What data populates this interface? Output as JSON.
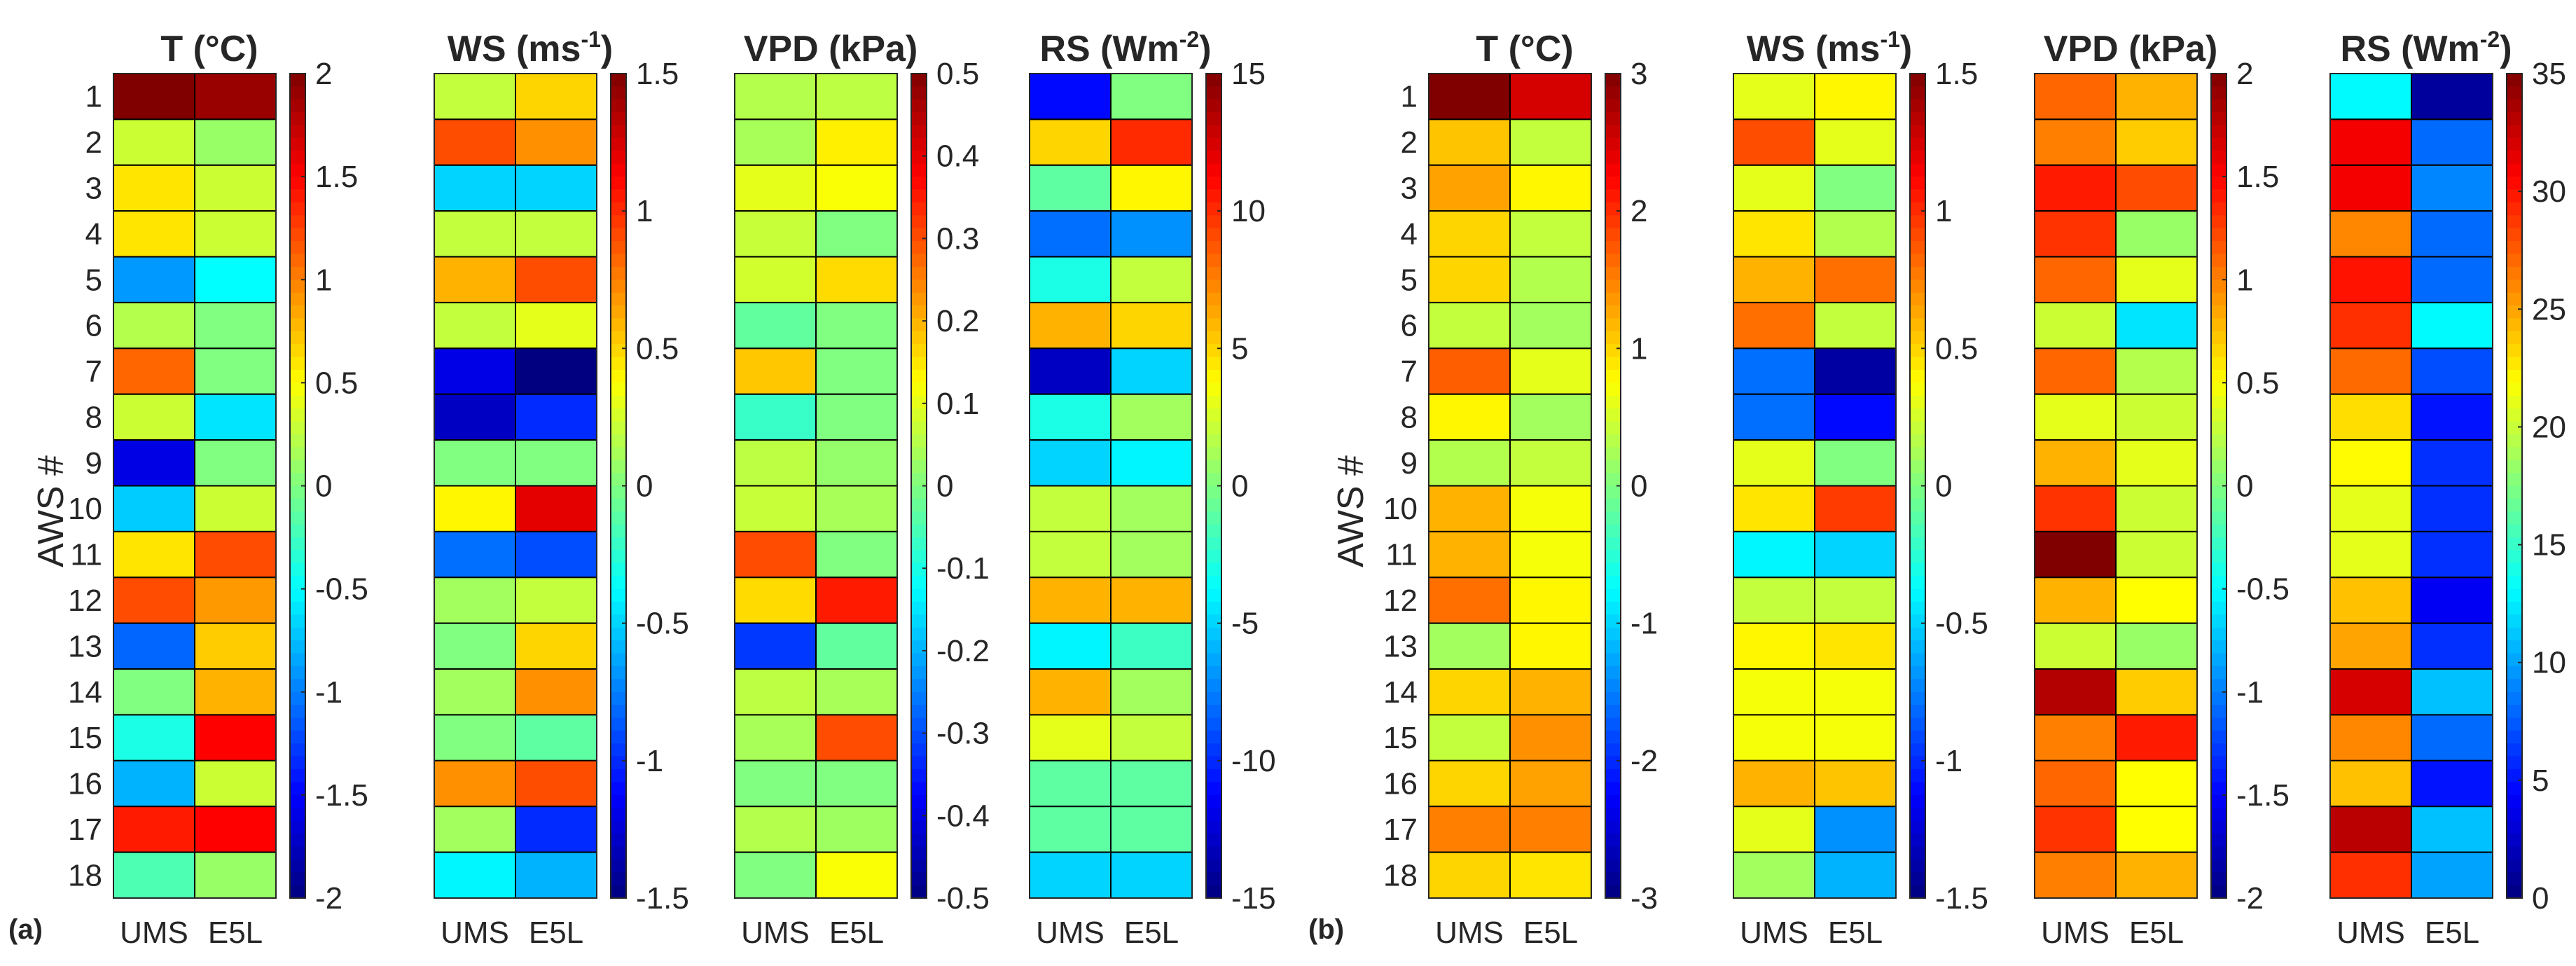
{
  "chart_data": {
    "type": "heatmap",
    "colormap": "jet",
    "ylabel": "AWS #",
    "rows": [
      "1",
      "2",
      "3",
      "4",
      "5",
      "6",
      "7",
      "8",
      "9",
      "10",
      "11",
      "12",
      "13",
      "14",
      "15",
      "16",
      "17",
      "18"
    ],
    "columns": [
      "UMS",
      "E5L"
    ],
    "panels": [
      {
        "label": "(a)",
        "subplots": [
          {
            "title": "T (°C)",
            "title_main": "T (°C)",
            "title_sup": "",
            "clim": [
              -2,
              2
            ],
            "colorbar_ticks": [
              -2,
              -1.5,
              -1,
              -0.5,
              0,
              0.5,
              1,
              1.5,
              2
            ],
            "colorbar_tick_labels": [
              "-2",
              "-1.5",
              "-1",
              "-0.5",
              "0",
              "0.5",
              "1",
              "1.5",
              "2"
            ],
            "values": [
              [
                2.0,
                1.9
              ],
              [
                0.3,
                0.1
              ],
              [
                0.6,
                0.3
              ],
              [
                0.6,
                0.3
              ],
              [
                -0.9,
                -0.5
              ],
              [
                0.2,
                0.0
              ],
              [
                1.1,
                0.0
              ],
              [
                0.3,
                -0.6
              ],
              [
                -1.6,
                0.0
              ],
              [
                -0.7,
                0.3
              ],
              [
                0.6,
                1.2
              ],
              [
                1.2,
                0.9
              ],
              [
                -1.1,
                0.7
              ],
              [
                0.0,
                0.8
              ],
              [
                -0.4,
                1.5
              ],
              [
                -0.8,
                0.3
              ],
              [
                1.4,
                1.5
              ],
              [
                -0.2,
                0.1
              ]
            ]
          },
          {
            "title": "WS (ms-1)",
            "title_main": "WS (ms",
            "title_sup": "-1",
            "title_close": ")",
            "clim": [
              -1.5,
              1.5
            ],
            "colorbar_ticks": [
              -1.5,
              -1,
              -0.5,
              0,
              0.5,
              1,
              1.5
            ],
            "colorbar_tick_labels": [
              "-1.5",
              "-1",
              "-0.5",
              "0",
              "0.5",
              "1",
              "1.5"
            ],
            "values": [
              [
                0.2,
                0.5
              ],
              [
                0.9,
                0.7
              ],
              [
                -0.5,
                -0.5
              ],
              [
                0.2,
                0.2
              ],
              [
                0.6,
                0.9
              ],
              [
                0.2,
                0.3
              ],
              [
                -1.2,
                -1.5
              ],
              [
                -1.3,
                -1.0
              ],
              [
                0.0,
                0.0
              ],
              [
                0.4,
                1.2
              ],
              [
                -0.8,
                -0.9
              ],
              [
                0.1,
                0.2
              ],
              [
                0.0,
                0.5
              ],
              [
                0.1,
                0.7
              ],
              [
                0.0,
                -0.1
              ],
              [
                0.7,
                0.9
              ],
              [
                0.1,
                -1.0
              ],
              [
                -0.4,
                -0.6
              ]
            ]
          },
          {
            "title": "VPD (kPa)",
            "title_main": "VPD (kPa)",
            "title_sup": "",
            "clim": [
              -0.5,
              0.5
            ],
            "colorbar_ticks": [
              -0.5,
              -0.4,
              -0.3,
              -0.2,
              -0.1,
              0,
              0.1,
              0.2,
              0.3,
              0.4,
              0.5
            ],
            "colorbar_tick_labels": [
              "-0.5",
              "-0.4",
              "-0.3",
              "-0.2",
              "-0.1",
              "0",
              "0.1",
              "0.2",
              "0.3",
              "0.4",
              "0.5"
            ],
            "values": [
              [
                0.05,
                0.06
              ],
              [
                0.04,
                0.14
              ],
              [
                0.1,
                0.12
              ],
              [
                0.07,
                0.0
              ],
              [
                0.08,
                0.16
              ],
              [
                -0.03,
                0.0
              ],
              [
                0.18,
                0.0
              ],
              [
                -0.07,
                0.0
              ],
              [
                0.06,
                0.02
              ],
              [
                0.07,
                0.04
              ],
              [
                0.3,
                0.0
              ],
              [
                0.16,
                0.35
              ],
              [
                -0.32,
                -0.03
              ],
              [
                0.06,
                0.04
              ],
              [
                0.04,
                0.3
              ],
              [
                0.0,
                0.0
              ],
              [
                0.05,
                0.03
              ],
              [
                0.0,
                0.12
              ]
            ]
          },
          {
            "title": "RS (Wm-2)",
            "title_main": "RS (Wm",
            "title_sup": "-2",
            "title_close": ")",
            "clim": [
              -15,
              15
            ],
            "colorbar_ticks": [
              -15,
              -10,
              -5,
              0,
              5,
              10,
              15
            ],
            "colorbar_tick_labels": [
              "-15",
              "-10",
              "-5",
              "0",
              "5",
              "10",
              "15"
            ],
            "values": [
              [
                -11,
                0
              ],
              [
                5,
                10
              ],
              [
                -1,
                4
              ],
              [
                -8,
                -7
              ],
              [
                -3,
                2
              ],
              [
                6,
                5
              ],
              [
                -13,
                -5
              ],
              [
                -3,
                1
              ],
              [
                -5,
                -4
              ],
              [
                2,
                1
              ],
              [
                2,
                1
              ],
              [
                6,
                6
              ],
              [
                -4,
                -2
              ],
              [
                6,
                1
              ],
              [
                3,
                2
              ],
              [
                -1,
                -1
              ],
              [
                -1,
                -1
              ],
              [
                -5,
                -5
              ]
            ]
          }
        ]
      },
      {
        "label": "(b)",
        "subplots": [
          {
            "title": "T (°C)",
            "title_main": "T (°C)",
            "title_sup": "",
            "clim": [
              -3,
              3
            ],
            "colorbar_ticks": [
              -3,
              -2,
              -1,
              0,
              1,
              2,
              3
            ],
            "colorbar_tick_labels": [
              "-3",
              "-2",
              "-1",
              "0",
              "1",
              "2",
              "3"
            ],
            "values": [
              [
                3.0,
                2.5
              ],
              [
                1.1,
                0.4
              ],
              [
                1.3,
                0.8
              ],
              [
                1.0,
                0.4
              ],
              [
                1.0,
                0.3
              ],
              [
                0.4,
                0.2
              ],
              [
                1.7,
                0.6
              ],
              [
                0.8,
                0.2
              ],
              [
                0.3,
                0.4
              ],
              [
                1.2,
                0.7
              ],
              [
                1.2,
                0.7
              ],
              [
                1.6,
                0.8
              ],
              [
                0.2,
                0.8
              ],
              [
                1.0,
                1.2
              ],
              [
                0.4,
                1.4
              ],
              [
                1.0,
                1.3
              ],
              [
                1.5,
                1.5
              ],
              [
                1.0,
                0.9
              ]
            ]
          },
          {
            "title": "WS (ms-1)",
            "title_main": "WS (ms",
            "title_sup": "-1",
            "title_close": ")",
            "clim": [
              -1.5,
              1.5
            ],
            "colorbar_ticks": [
              -1.5,
              -1,
              -0.5,
              0,
              0.5,
              1,
              1.5
            ],
            "colorbar_tick_labels": [
              "-1.5",
              "-1",
              "-0.5",
              "0",
              "0.5",
              "1",
              "1.5"
            ],
            "values": [
              [
                0.3,
                0.4
              ],
              [
                0.9,
                0.3
              ],
              [
                0.3,
                0.0
              ],
              [
                0.45,
                0.15
              ],
              [
                0.6,
                0.8
              ],
              [
                0.8,
                0.2
              ],
              [
                -0.8,
                -1.4
              ],
              [
                -0.8,
                -1.1
              ],
              [
                0.3,
                0.0
              ],
              [
                0.45,
                0.95
              ],
              [
                -0.4,
                -0.5
              ],
              [
                0.2,
                0.2
              ],
              [
                0.4,
                0.45
              ],
              [
                0.35,
                0.35
              ],
              [
                0.35,
                0.35
              ],
              [
                0.6,
                0.55
              ],
              [
                0.3,
                -0.7
              ],
              [
                0.1,
                -0.6
              ]
            ]
          },
          {
            "title": "VPD (kPa)",
            "title_main": "VPD (kPa)",
            "title_sup": "",
            "clim": [
              -2,
              2
            ],
            "colorbar_ticks": [
              -2,
              -1.5,
              -1,
              -0.5,
              0,
              0.5,
              1,
              1.5,
              2
            ],
            "colorbar_tick_labels": [
              "-2",
              "-1.5",
              "-1",
              "-0.5",
              "0",
              "0.5",
              "1",
              "1.5",
              "2"
            ],
            "values": [
              [
                1.1,
                0.8
              ],
              [
                1.0,
                0.7
              ],
              [
                1.4,
                1.2
              ],
              [
                1.3,
                0.1
              ],
              [
                1.1,
                0.4
              ],
              [
                0.3,
                -0.6
              ],
              [
                1.1,
                0.2
              ],
              [
                0.4,
                0.3
              ],
              [
                0.8,
                0.4
              ],
              [
                1.3,
                0.3
              ],
              [
                2.0,
                0.3
              ],
              [
                0.8,
                0.5
              ],
              [
                0.3,
                0.1
              ],
              [
                1.8,
                0.7
              ],
              [
                1.0,
                1.4
              ],
              [
                1.1,
                0.5
              ],
              [
                1.3,
                0.5
              ],
              [
                1.0,
                0.8
              ]
            ]
          },
          {
            "title": "RS (Wm-2)",
            "title_main": "RS (Wm",
            "title_sup": "-2",
            "title_close": ")",
            "clim": [
              0,
              35
            ],
            "colorbar_ticks": [
              0,
              5,
              10,
              15,
              20,
              25,
              30,
              35
            ],
            "colorbar_tick_labels": [
              "0",
              "5",
              "10",
              "15",
              "20",
              "25",
              "30",
              "35"
            ],
            "values": [
              [
                13,
                1
              ],
              [
                31,
                8
              ],
              [
                31,
                9
              ],
              [
                26,
                8
              ],
              [
                30,
                8
              ],
              [
                29,
                13
              ],
              [
                27,
                7
              ],
              [
                23,
                5
              ],
              [
                22,
                6
              ],
              [
                21,
                6
              ],
              [
                21,
                6
              ],
              [
                24,
                4
              ],
              [
                25,
                6
              ],
              [
                32,
                11
              ],
              [
                26,
                8
              ],
              [
                24,
                5
              ],
              [
                33,
                11
              ],
              [
                29,
                10
              ]
            ]
          }
        ]
      }
    ]
  }
}
